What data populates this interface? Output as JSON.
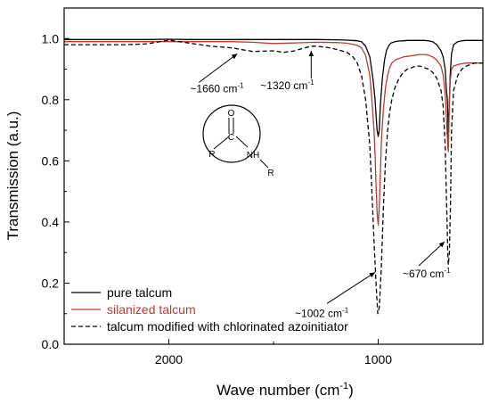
{
  "chart_data": {
    "type": "line",
    "xlabel": "Wave number (cm",
    "xlabel_sup": "-1",
    "xlabel_close": ")",
    "ylabel": "Transmission (a.u.)",
    "xlim": [
      2500,
      500
    ],
    "ylim": [
      0.0,
      1.1
    ],
    "x_ticks": [
      2000,
      1000
    ],
    "x_tick_labels": [
      "2000",
      "1000"
    ],
    "y_ticks": [
      0.0,
      0.2,
      0.4,
      0.6,
      0.8,
      1.0
    ],
    "y_tick_labels": [
      "0.0",
      "0.2",
      "0.4",
      "0.6",
      "0.8",
      "1.0"
    ],
    "grid": false,
    "legend_position": "bottom-left",
    "series": [
      {
        "name": "pure talcum",
        "color": "#000000",
        "style": "solid",
        "x": [
          2500,
          2400,
          2300,
          2200,
          2100,
          2000,
          1900,
          1800,
          1700,
          1600,
          1500,
          1400,
          1300,
          1200,
          1150,
          1100,
          1080,
          1060,
          1040,
          1025,
          1015,
          1010,
          1005,
          1000,
          995,
          990,
          980,
          970,
          960,
          950,
          940,
          920,
          900,
          880,
          860,
          840,
          820,
          800,
          780,
          760,
          740,
          720,
          700,
          690,
          680,
          675,
          670,
          667,
          665,
          663,
          660,
          656,
          650,
          640,
          620,
          600,
          580,
          560,
          540,
          520,
          500
        ],
        "y": [
          0.997,
          0.997,
          0.997,
          0.997,
          0.997,
          0.998,
          0.997,
          0.997,
          0.997,
          0.997,
          0.997,
          0.997,
          0.997,
          0.996,
          0.995,
          0.993,
          0.99,
          0.975,
          0.94,
          0.87,
          0.8,
          0.75,
          0.7,
          0.68,
          0.7,
          0.78,
          0.87,
          0.93,
          0.962,
          0.976,
          0.985,
          0.99,
          0.992,
          0.993,
          0.994,
          0.994,
          0.994,
          0.994,
          0.994,
          0.993,
          0.99,
          0.98,
          0.96,
          0.94,
          0.9,
          0.84,
          0.8,
          0.74,
          0.66,
          0.73,
          0.8,
          0.88,
          0.95,
          0.98,
          0.99,
          0.993,
          0.994,
          0.994,
          0.994,
          0.994,
          0.994
        ]
      },
      {
        "name": "silanized talcum",
        "color": "#c0392b",
        "style": "solid",
        "x": [
          2500,
          2400,
          2300,
          2200,
          2100,
          2000,
          1900,
          1800,
          1700,
          1600,
          1500,
          1400,
          1300,
          1200,
          1150,
          1100,
          1080,
          1060,
          1040,
          1030,
          1020,
          1015,
          1010,
          1005,
          1000,
          995,
          990,
          985,
          975,
          965,
          955,
          945,
          935,
          920,
          900,
          880,
          860,
          840,
          820,
          800,
          780,
          760,
          740,
          720,
          700,
          690,
          680,
          675,
          670,
          667,
          665,
          663,
          660,
          656,
          650,
          640,
          620,
          600,
          580,
          560,
          540,
          520,
          500
        ],
        "y": [
          0.99,
          0.99,
          0.99,
          0.99,
          0.99,
          0.99,
          0.99,
          0.99,
          0.99,
          0.988,
          0.984,
          0.986,
          0.988,
          0.987,
          0.985,
          0.978,
          0.97,
          0.945,
          0.88,
          0.8,
          0.7,
          0.62,
          0.52,
          0.43,
          0.39,
          0.45,
          0.55,
          0.66,
          0.77,
          0.84,
          0.88,
          0.905,
          0.92,
          0.93,
          0.935,
          0.94,
          0.942,
          0.944,
          0.946,
          0.948,
          0.948,
          0.946,
          0.94,
          0.93,
          0.91,
          0.88,
          0.82,
          0.75,
          0.68,
          0.64,
          0.63,
          0.7,
          0.79,
          0.86,
          0.9,
          0.91,
          0.915,
          0.918,
          0.92,
          0.92,
          0.92,
          0.92,
          0.92
        ]
      },
      {
        "name": "talcum modified with chlorinated azoinitiator",
        "color": "#000000",
        "style": "dashed",
        "x": [
          2500,
          2400,
          2300,
          2200,
          2100,
          2000,
          1950,
          1900,
          1800,
          1700,
          1660,
          1600,
          1500,
          1450,
          1400,
          1350,
          1320,
          1300,
          1250,
          1200,
          1150,
          1120,
          1100,
          1080,
          1060,
          1040,
          1030,
          1020,
          1010,
          1002,
          995,
          985,
          975,
          965,
          955,
          945,
          935,
          920,
          900,
          880,
          860,
          840,
          820,
          800,
          780,
          760,
          740,
          720,
          700,
          690,
          680,
          675,
          670,
          668,
          665,
          660,
          655,
          650,
          640,
          620,
          600,
          580,
          560,
          540,
          520,
          500
        ],
        "y": [
          0.98,
          0.98,
          0.98,
          0.98,
          0.983,
          0.995,
          0.99,
          0.985,
          0.975,
          0.97,
          0.965,
          0.958,
          0.96,
          0.955,
          0.96,
          0.97,
          0.975,
          0.975,
          0.972,
          0.965,
          0.955,
          0.94,
          0.92,
          0.88,
          0.8,
          0.65,
          0.5,
          0.34,
          0.2,
          0.1,
          0.12,
          0.25,
          0.45,
          0.6,
          0.7,
          0.76,
          0.8,
          0.84,
          0.87,
          0.89,
          0.9,
          0.905,
          0.91,
          0.91,
          0.905,
          0.9,
          0.89,
          0.87,
          0.83,
          0.78,
          0.65,
          0.5,
          0.37,
          0.3,
          0.26,
          0.3,
          0.45,
          0.7,
          0.83,
          0.88,
          0.9,
          0.91,
          0.915,
          0.92,
          0.92,
          0.92
        ]
      }
    ],
    "annotations": [
      {
        "text": "~1660 cm",
        "sup": "-1",
        "x": 1660,
        "y": 0.965
      },
      {
        "text": "~1320 cm",
        "sup": "-1",
        "x": 1320,
        "y": 0.975
      },
      {
        "text": "~1002 cm",
        "sup": "-1",
        "x": 1002,
        "y": 0.25
      },
      {
        "text": "~670 cm",
        "sup": "-1",
        "x": 670,
        "y": 0.35
      }
    ],
    "inset_structure": {
      "atoms": [
        "O",
        "C",
        "NH",
        "R",
        "R"
      ]
    }
  }
}
